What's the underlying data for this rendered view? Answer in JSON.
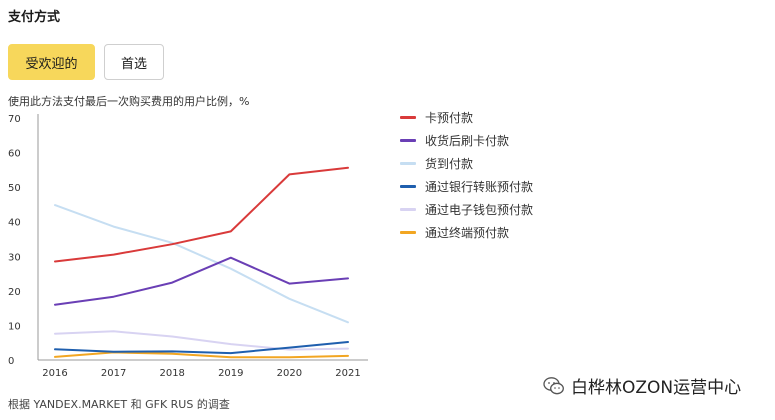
{
  "page": {
    "title": "支付方式",
    "tabs": [
      {
        "label": "受欢迎的",
        "active": true
      },
      {
        "label": "首选",
        "active": false
      }
    ],
    "source": "根据 YANDEX.MARKET 和 GFK RUS 的调查",
    "watermark": "白桦林OZON运营中心",
    "watermark_icon": "wechat-icon"
  },
  "chart_data": {
    "type": "line",
    "title": "使用此方法支付最后一次购买费用的用户比例，%",
    "xlabel": "",
    "ylabel": "",
    "x": [
      "2016",
      "2017",
      "2018",
      "2019",
      "2020",
      "2021"
    ],
    "ylim": [
      0,
      70
    ],
    "yticks": [
      0,
      10,
      20,
      30,
      40,
      50,
      60,
      70
    ],
    "grid": false,
    "legend_position": "right",
    "series": [
      {
        "name": "卡预付款",
        "color": "#d93a3a",
        "values": [
          28.5,
          30.5,
          33.5,
          37.2,
          53.7,
          55.6
        ]
      },
      {
        "name": "收货后刷卡付款",
        "color": "#6a3fb5",
        "values": [
          16.0,
          18.3,
          22.4,
          29.6,
          22.1,
          23.6
        ]
      },
      {
        "name": "货到付款",
        "color": "#c6def2",
        "values": [
          44.8,
          38.6,
          33.9,
          26.4,
          17.7,
          10.9
        ]
      },
      {
        "name": "通过银行转账预付款",
        "color": "#1f5fae",
        "values": [
          3.1,
          2.4,
          2.5,
          2.0,
          3.6,
          5.2
        ]
      },
      {
        "name": "通过电子钱包预付款",
        "color": "#d8d3f2",
        "values": [
          7.6,
          8.3,
          6.8,
          4.6,
          3.0,
          3.3
        ]
      },
      {
        "name": "通过终端预付款",
        "color": "#f2a622",
        "values": [
          0.9,
          2.2,
          1.8,
          0.8,
          0.8,
          1.2
        ]
      }
    ]
  }
}
